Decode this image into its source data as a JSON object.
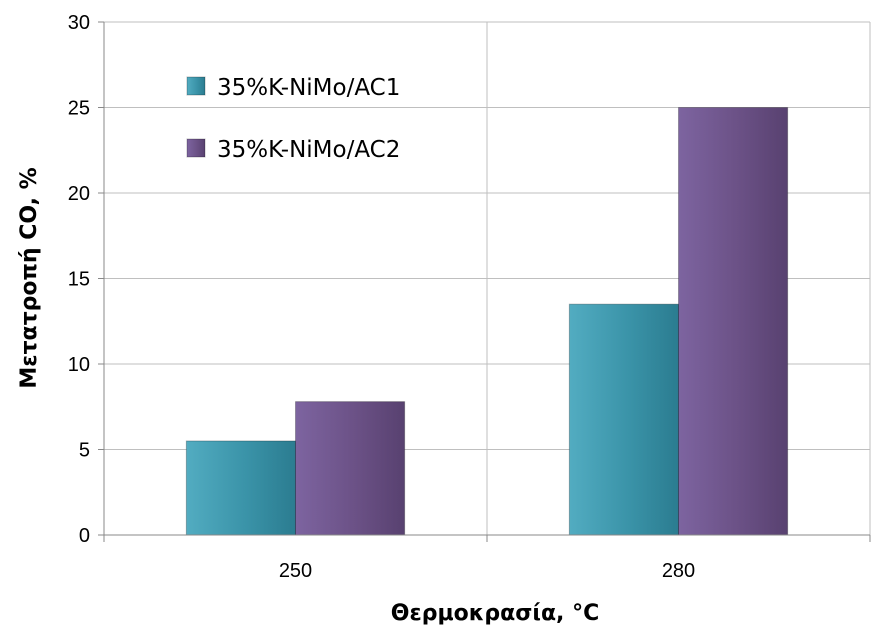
{
  "chart_data": {
    "type": "bar",
    "title": "",
    "xlabel": "Θερμοκρασία, °C",
    "ylabel": "Μετατροπή CO, %",
    "categories": [
      "250",
      "280"
    ],
    "series": [
      {
        "name": "35%K-NiMo/AC1",
        "values": [
          5.5,
          13.5
        ],
        "color": "#3a93a8"
      },
      {
        "name": "35%K-NiMo/AC2",
        "values": [
          7.8,
          25.0
        ],
        "color": "#6b5186"
      }
    ],
    "ylim": [
      0,
      30
    ],
    "yticks": [
      0,
      5,
      10,
      15,
      20,
      25,
      30
    ],
    "grid": true,
    "legend_position": "top-left"
  }
}
